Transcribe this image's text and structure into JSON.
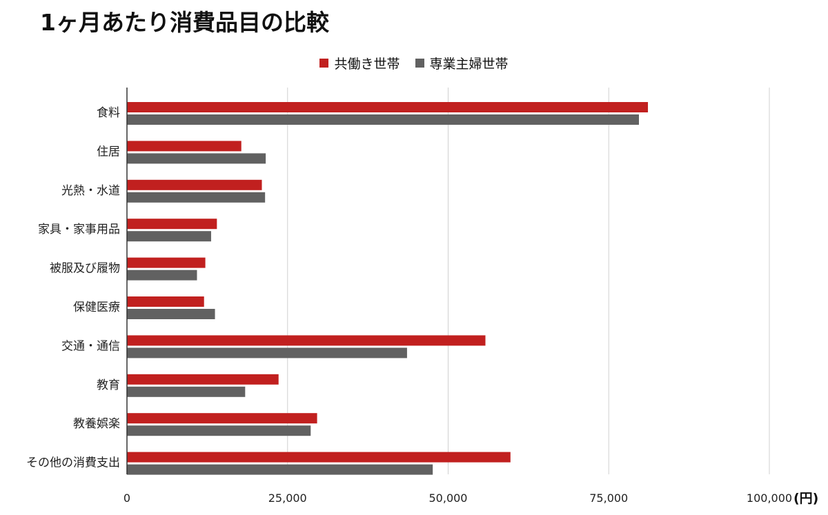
{
  "title": "1ヶ月あたり消費品目の比較",
  "colors": {
    "dual": "#c1201f",
    "single": "#616161"
  },
  "unit_label": "(円)",
  "chart_data": {
    "type": "bar",
    "orientation": "horizontal",
    "title": "1ヶ月あたり消費品目の比較",
    "xlabel": "",
    "ylabel": "",
    "xlim": [
      0,
      100000
    ],
    "grid": true,
    "legend": "top",
    "x_ticks": [
      "0",
      "25,000",
      "50,000",
      "75,000",
      "100,000"
    ],
    "x_tick_values": [
      0,
      25000,
      50000,
      75000,
      100000
    ],
    "categories": [
      "食料",
      "住居",
      "光熱・水道",
      "家具・家事用品",
      "被服及び履物",
      "保健医療",
      "交通・通信",
      "教育",
      "教養娯楽",
      "その他の消費支出"
    ],
    "series": [
      {
        "name": "共働き世帯",
        "values": [
          81100,
          17800,
          21000,
          14000,
          12200,
          12000,
          55800,
          23600,
          29600,
          59700
        ]
      },
      {
        "name": "専業主婦世帯",
        "values": [
          79700,
          21600,
          21500,
          13100,
          10900,
          13700,
          43600,
          18400,
          28600,
          47600
        ]
      }
    ]
  }
}
